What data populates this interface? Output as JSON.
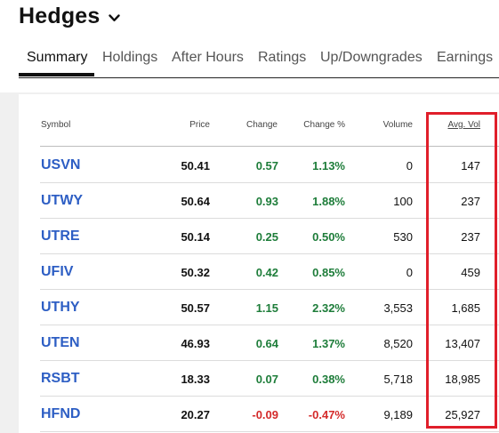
{
  "header": {
    "title": "Hedges"
  },
  "tabs": [
    {
      "label": "Summary",
      "active": true
    },
    {
      "label": "Holdings",
      "active": false
    },
    {
      "label": "After Hours",
      "active": false
    },
    {
      "label": "Ratings",
      "active": false
    },
    {
      "label": "Up/Downgrades",
      "active": false
    },
    {
      "label": "Earnings",
      "active": false
    }
  ],
  "table": {
    "columns": [
      "Symbol",
      "Price",
      "Change",
      "Change %",
      "Volume",
      "Avg. Vol"
    ],
    "rows": [
      {
        "symbol": "USVN",
        "price": "50.41",
        "change": "0.57",
        "change_pct": "1.13%",
        "volume": "0",
        "avg_vol": "147",
        "direction": "up"
      },
      {
        "symbol": "UTWY",
        "price": "50.64",
        "change": "0.93",
        "change_pct": "1.88%",
        "volume": "100",
        "avg_vol": "237",
        "direction": "up"
      },
      {
        "symbol": "UTRE",
        "price": "50.14",
        "change": "0.25",
        "change_pct": "0.50%",
        "volume": "530",
        "avg_vol": "237",
        "direction": "up"
      },
      {
        "symbol": "UFIV",
        "price": "50.32",
        "change": "0.42",
        "change_pct": "0.85%",
        "volume": "0",
        "avg_vol": "459",
        "direction": "up"
      },
      {
        "symbol": "UTHY",
        "price": "50.57",
        "change": "1.15",
        "change_pct": "2.32%",
        "volume": "3,553",
        "avg_vol": "1,685",
        "direction": "up"
      },
      {
        "symbol": "UTEN",
        "price": "46.93",
        "change": "0.64",
        "change_pct": "1.37%",
        "volume": "8,520",
        "avg_vol": "13,407",
        "direction": "up"
      },
      {
        "symbol": "RSBT",
        "price": "18.33",
        "change": "0.07",
        "change_pct": "0.38%",
        "volume": "5,718",
        "avg_vol": "18,985",
        "direction": "up"
      },
      {
        "symbol": "HFND",
        "price": "20.27",
        "change": "-0.09",
        "change_pct": "-0.47%",
        "volume": "9,189",
        "avg_vol": "25,927",
        "direction": "down"
      }
    ]
  },
  "colors": {
    "positive": "#1e7d3a",
    "negative": "#d42a2a",
    "symbol_link": "#2d5ec4",
    "highlight": "#e01e2a"
  },
  "icons": {
    "title_dropdown": "chevron-down-icon"
  }
}
